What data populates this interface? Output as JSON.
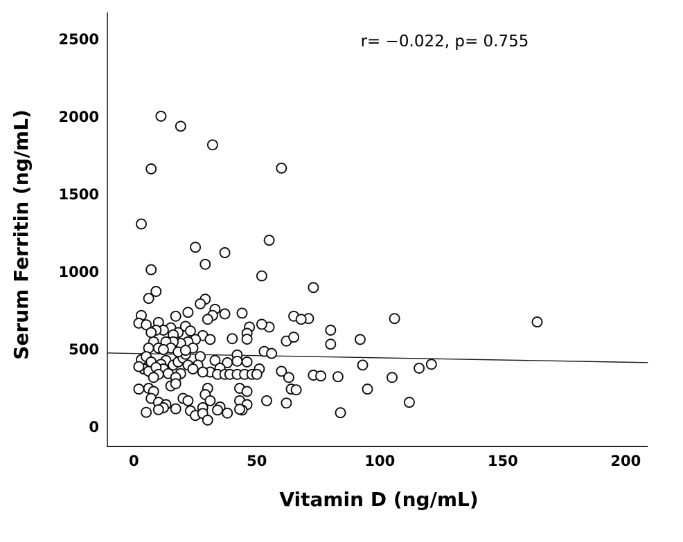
{
  "chart_data": {
    "type": "scatter",
    "title": "",
    "annotation": "r= −0.022, p= 0.755",
    "xlabel": "Vitamin D (ng/mL)",
    "ylabel": "Serum Ferritin (ng/mL)",
    "xticks": [
      0,
      50,
      100,
      150,
      200
    ],
    "yticks": [
      0,
      500,
      1000,
      1500,
      2000,
      2500
    ],
    "xlim": [
      -10.8,
      209
    ],
    "ylim": [
      -125,
      2674
    ],
    "legend": null,
    "grid": false,
    "marker": {
      "shape": "open-circle",
      "fill": "#ffffff",
      "stroke": "#0d0d0d",
      "radius": 7,
      "stroke_width": 1.9
    },
    "trend_line": {
      "x1": -10.8,
      "y1": 478,
      "x2": 209,
      "y2": 416,
      "color": "#1a1a1a",
      "width": 1.4
    },
    "colors": {
      "background": "#ffffff",
      "y_axis": "#4d4d4d",
      "x_axis": "#262626",
      "text": "#000000"
    },
    "points": [
      [
        11,
        2005
      ],
      [
        19,
        1940
      ],
      [
        32,
        1820
      ],
      [
        7,
        1665
      ],
      [
        60,
        1670
      ],
      [
        3,
        1310
      ],
      [
        55,
        1205
      ],
      [
        25,
        1160
      ],
      [
        37,
        1125
      ],
      [
        29,
        1050
      ],
      [
        7,
        1015
      ],
      [
        52,
        975
      ],
      [
        73,
        900
      ],
      [
        9,
        875
      ],
      [
        6,
        830
      ],
      [
        29,
        825
      ],
      [
        27,
        795
      ],
      [
        33,
        760
      ],
      [
        22,
        740
      ],
      [
        44,
        735
      ],
      [
        37,
        730
      ],
      [
        32,
        720
      ],
      [
        3,
        720
      ],
      [
        17,
        715
      ],
      [
        65,
        715
      ],
      [
        71,
        700
      ],
      [
        68,
        695
      ],
      [
        30,
        695
      ],
      [
        106,
        700
      ],
      [
        164,
        678
      ],
      [
        2,
        670
      ],
      [
        10,
        675
      ],
      [
        5,
        660
      ],
      [
        21,
        650
      ],
      [
        47,
        645
      ],
      [
        55,
        645
      ],
      [
        52,
        663
      ],
      [
        15,
        640
      ],
      [
        80,
        625
      ],
      [
        12,
        625
      ],
      [
        9,
        625
      ],
      [
        23,
        620
      ],
      [
        7,
        610
      ],
      [
        18,
        610
      ],
      [
        46,
        605
      ],
      [
        16,
        595
      ],
      [
        28,
        590
      ],
      [
        25,
        565
      ],
      [
        22,
        550
      ],
      [
        19,
        540
      ],
      [
        16,
        550
      ],
      [
        13,
        550
      ],
      [
        8,
        550
      ],
      [
        40,
        570
      ],
      [
        46,
        567
      ],
      [
        62,
        555
      ],
      [
        65,
        580
      ],
      [
        92,
        565
      ],
      [
        31,
        565
      ],
      [
        80,
        535
      ],
      [
        6,
        510
      ],
      [
        10,
        510
      ],
      [
        15,
        510
      ],
      [
        24,
        510
      ],
      [
        12,
        500
      ],
      [
        53,
        488
      ],
      [
        56,
        475
      ],
      [
        42,
        465
      ],
      [
        3,
        435
      ],
      [
        5,
        455
      ],
      [
        7,
        420
      ],
      [
        13,
        430
      ],
      [
        11,
        405
      ],
      [
        16,
        400
      ],
      [
        18,
        420
      ],
      [
        20,
        445
      ],
      [
        21,
        470
      ],
      [
        27,
        455
      ],
      [
        22,
        400
      ],
      [
        26,
        400
      ],
      [
        33,
        430
      ],
      [
        38,
        415
      ],
      [
        42,
        425
      ],
      [
        46,
        420
      ],
      [
        18,
        485
      ],
      [
        21,
        495
      ],
      [
        93,
        400
      ],
      [
        121,
        405
      ],
      [
        24,
        375
      ],
      [
        12,
        375
      ],
      [
        4,
        375
      ],
      [
        2,
        390
      ],
      [
        6,
        360
      ],
      [
        9,
        385
      ],
      [
        35,
        380
      ],
      [
        31,
        355
      ],
      [
        51,
        375
      ],
      [
        10,
        340
      ],
      [
        8,
        320
      ],
      [
        14,
        345
      ],
      [
        19,
        345
      ],
      [
        17,
        320
      ],
      [
        28,
        355
      ],
      [
        34,
        340
      ],
      [
        37,
        340
      ],
      [
        39,
        340
      ],
      [
        42,
        340
      ],
      [
        45,
        340
      ],
      [
        48,
        340
      ],
      [
        50,
        340
      ],
      [
        60,
        360
      ],
      [
        63,
        320
      ],
      [
        73,
        335
      ],
      [
        76,
        330
      ],
      [
        83,
        325
      ],
      [
        105,
        320
      ],
      [
        116,
        380
      ],
      [
        2,
        245
      ],
      [
        6,
        250
      ],
      [
        8,
        230
      ],
      [
        15,
        265
      ],
      [
        17,
        280
      ],
      [
        30,
        250
      ],
      [
        43,
        250
      ],
      [
        46,
        230
      ],
      [
        64,
        245
      ],
      [
        66,
        240
      ],
      [
        95,
        245
      ],
      [
        29,
        210
      ],
      [
        7,
        185
      ],
      [
        10,
        160
      ],
      [
        20,
        185
      ],
      [
        22,
        170
      ],
      [
        13,
        145
      ],
      [
        12,
        125
      ],
      [
        31,
        170
      ],
      [
        43,
        170
      ],
      [
        46,
        145
      ],
      [
        54,
        170
      ],
      [
        62,
        155
      ],
      [
        112,
        160
      ],
      [
        35,
        130
      ],
      [
        34,
        110
      ],
      [
        44,
        110
      ],
      [
        10,
        112
      ],
      [
        17,
        118
      ],
      [
        28,
        125
      ],
      [
        43,
        115
      ],
      [
        5,
        95
      ],
      [
        23,
        105
      ],
      [
        25,
        75
      ],
      [
        28,
        88
      ],
      [
        30,
        45
      ],
      [
        38,
        90
      ],
      [
        84,
        93
      ]
    ]
  }
}
